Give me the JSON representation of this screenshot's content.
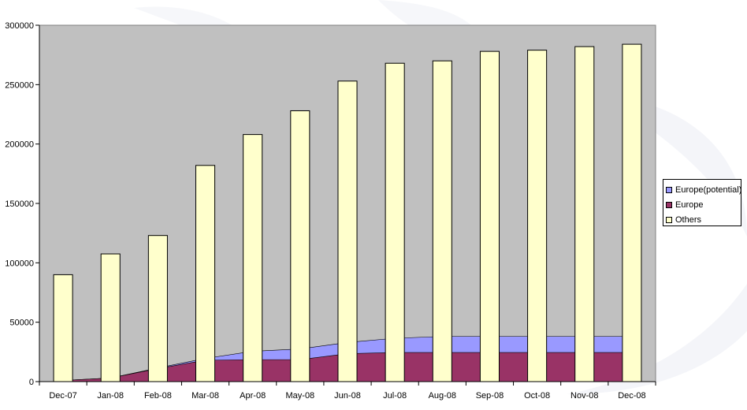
{
  "chart_data": {
    "type": "bar",
    "categories": [
      "Dec-07",
      "Jan-08",
      "Feb-08",
      "Mar-08",
      "Apr-08",
      "May-08",
      "Jun-08",
      "Jul-08",
      "Aug-08",
      "Sep-08",
      "Oct-08",
      "Nov-08",
      "Dec-08"
    ],
    "series": [
      {
        "name": "Others",
        "type": "bar",
        "values": [
          90000,
          107500,
          123000,
          182000,
          208000,
          228000,
          253000,
          268000,
          270000,
          278000,
          279000,
          282000,
          284000
        ]
      },
      {
        "name": "Europe",
        "type": "area",
        "values": [
          1000,
          3000,
          11000,
          18000,
          18500,
          18500,
          23500,
          24500,
          24500,
          24500,
          24500,
          24500,
          24500
        ]
      },
      {
        "name": "Europe(potential)",
        "type": "area",
        "values": [
          1000,
          3000,
          11500,
          19500,
          25500,
          27500,
          33000,
          36500,
          38000,
          38000,
          38000,
          38000,
          38000
        ]
      }
    ],
    "ylim": [
      0,
      300000
    ],
    "yticks": [
      0,
      50000,
      100000,
      150000,
      200000,
      250000,
      300000
    ],
    "ytick_labels": [
      "0",
      "50000",
      "100000",
      "150000",
      "200000",
      "250000",
      "300000"
    ],
    "legend": {
      "position": "right",
      "entries": [
        "Europe(potential)",
        "Europe",
        "Others"
      ]
    },
    "colors": {
      "plot_background": "#c0c0c0",
      "Others": "#ffffcc",
      "Europe": "#993366",
      "Europe(potential)": "#9999ff"
    },
    "title": "",
    "xlabel": "",
    "ylabel": "",
    "grid": false
  }
}
